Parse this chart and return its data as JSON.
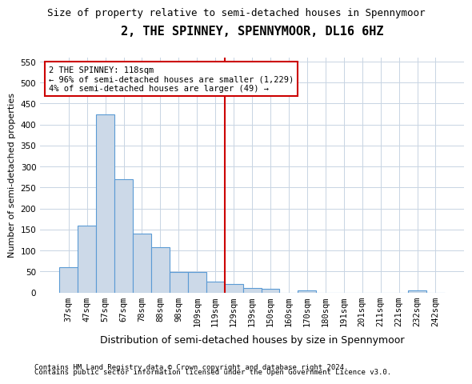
{
  "title": "2, THE SPINNEY, SPENNYMOOR, DL16 6HZ",
  "subtitle": "Size of property relative to semi-detached houses in Spennymoor",
  "xlabel": "Distribution of semi-detached houses by size in Spennymoor",
  "ylabel": "Number of semi-detached properties",
  "footer1": "Contains HM Land Registry data © Crown copyright and database right 2024.",
  "footer2": "Contains public sector information licensed under the Open Government Licence v3.0.",
  "annotation_line1": "2 THE SPINNEY: 118sqm",
  "annotation_line2": "← 96% of semi-detached houses are smaller (1,229)",
  "annotation_line3": "4% of semi-detached houses are larger (49) →",
  "bar_color": "#ccd9e8",
  "bar_edge_color": "#5b9bd5",
  "vline_color": "#cc0000",
  "annotation_box_edge_color": "#cc0000",
  "background_color": "#ffffff",
  "grid_color": "#c8d4e3",
  "categories": [
    "37sqm",
    "47sqm",
    "57sqm",
    "67sqm",
    "78sqm",
    "88sqm",
    "98sqm",
    "109sqm",
    "119sqm",
    "129sqm",
    "139sqm",
    "150sqm",
    "160sqm",
    "170sqm",
    "180sqm",
    "191sqm",
    "201sqm",
    "211sqm",
    "221sqm",
    "232sqm",
    "242sqm"
  ],
  "values": [
    60,
    160,
    425,
    270,
    140,
    107,
    48,
    48,
    25,
    20,
    10,
    8,
    0,
    5,
    0,
    0,
    0,
    0,
    0,
    5,
    0
  ],
  "ylim": [
    0,
    560
  ],
  "yticks": [
    0,
    50,
    100,
    150,
    200,
    250,
    300,
    350,
    400,
    450,
    500,
    550
  ],
  "vline_x": 8.5,
  "title_fontsize": 11,
  "subtitle_fontsize": 9,
  "ylabel_fontsize": 8,
  "xlabel_fontsize": 9,
  "tick_fontsize": 7.5,
  "footer_fontsize": 6.5
}
